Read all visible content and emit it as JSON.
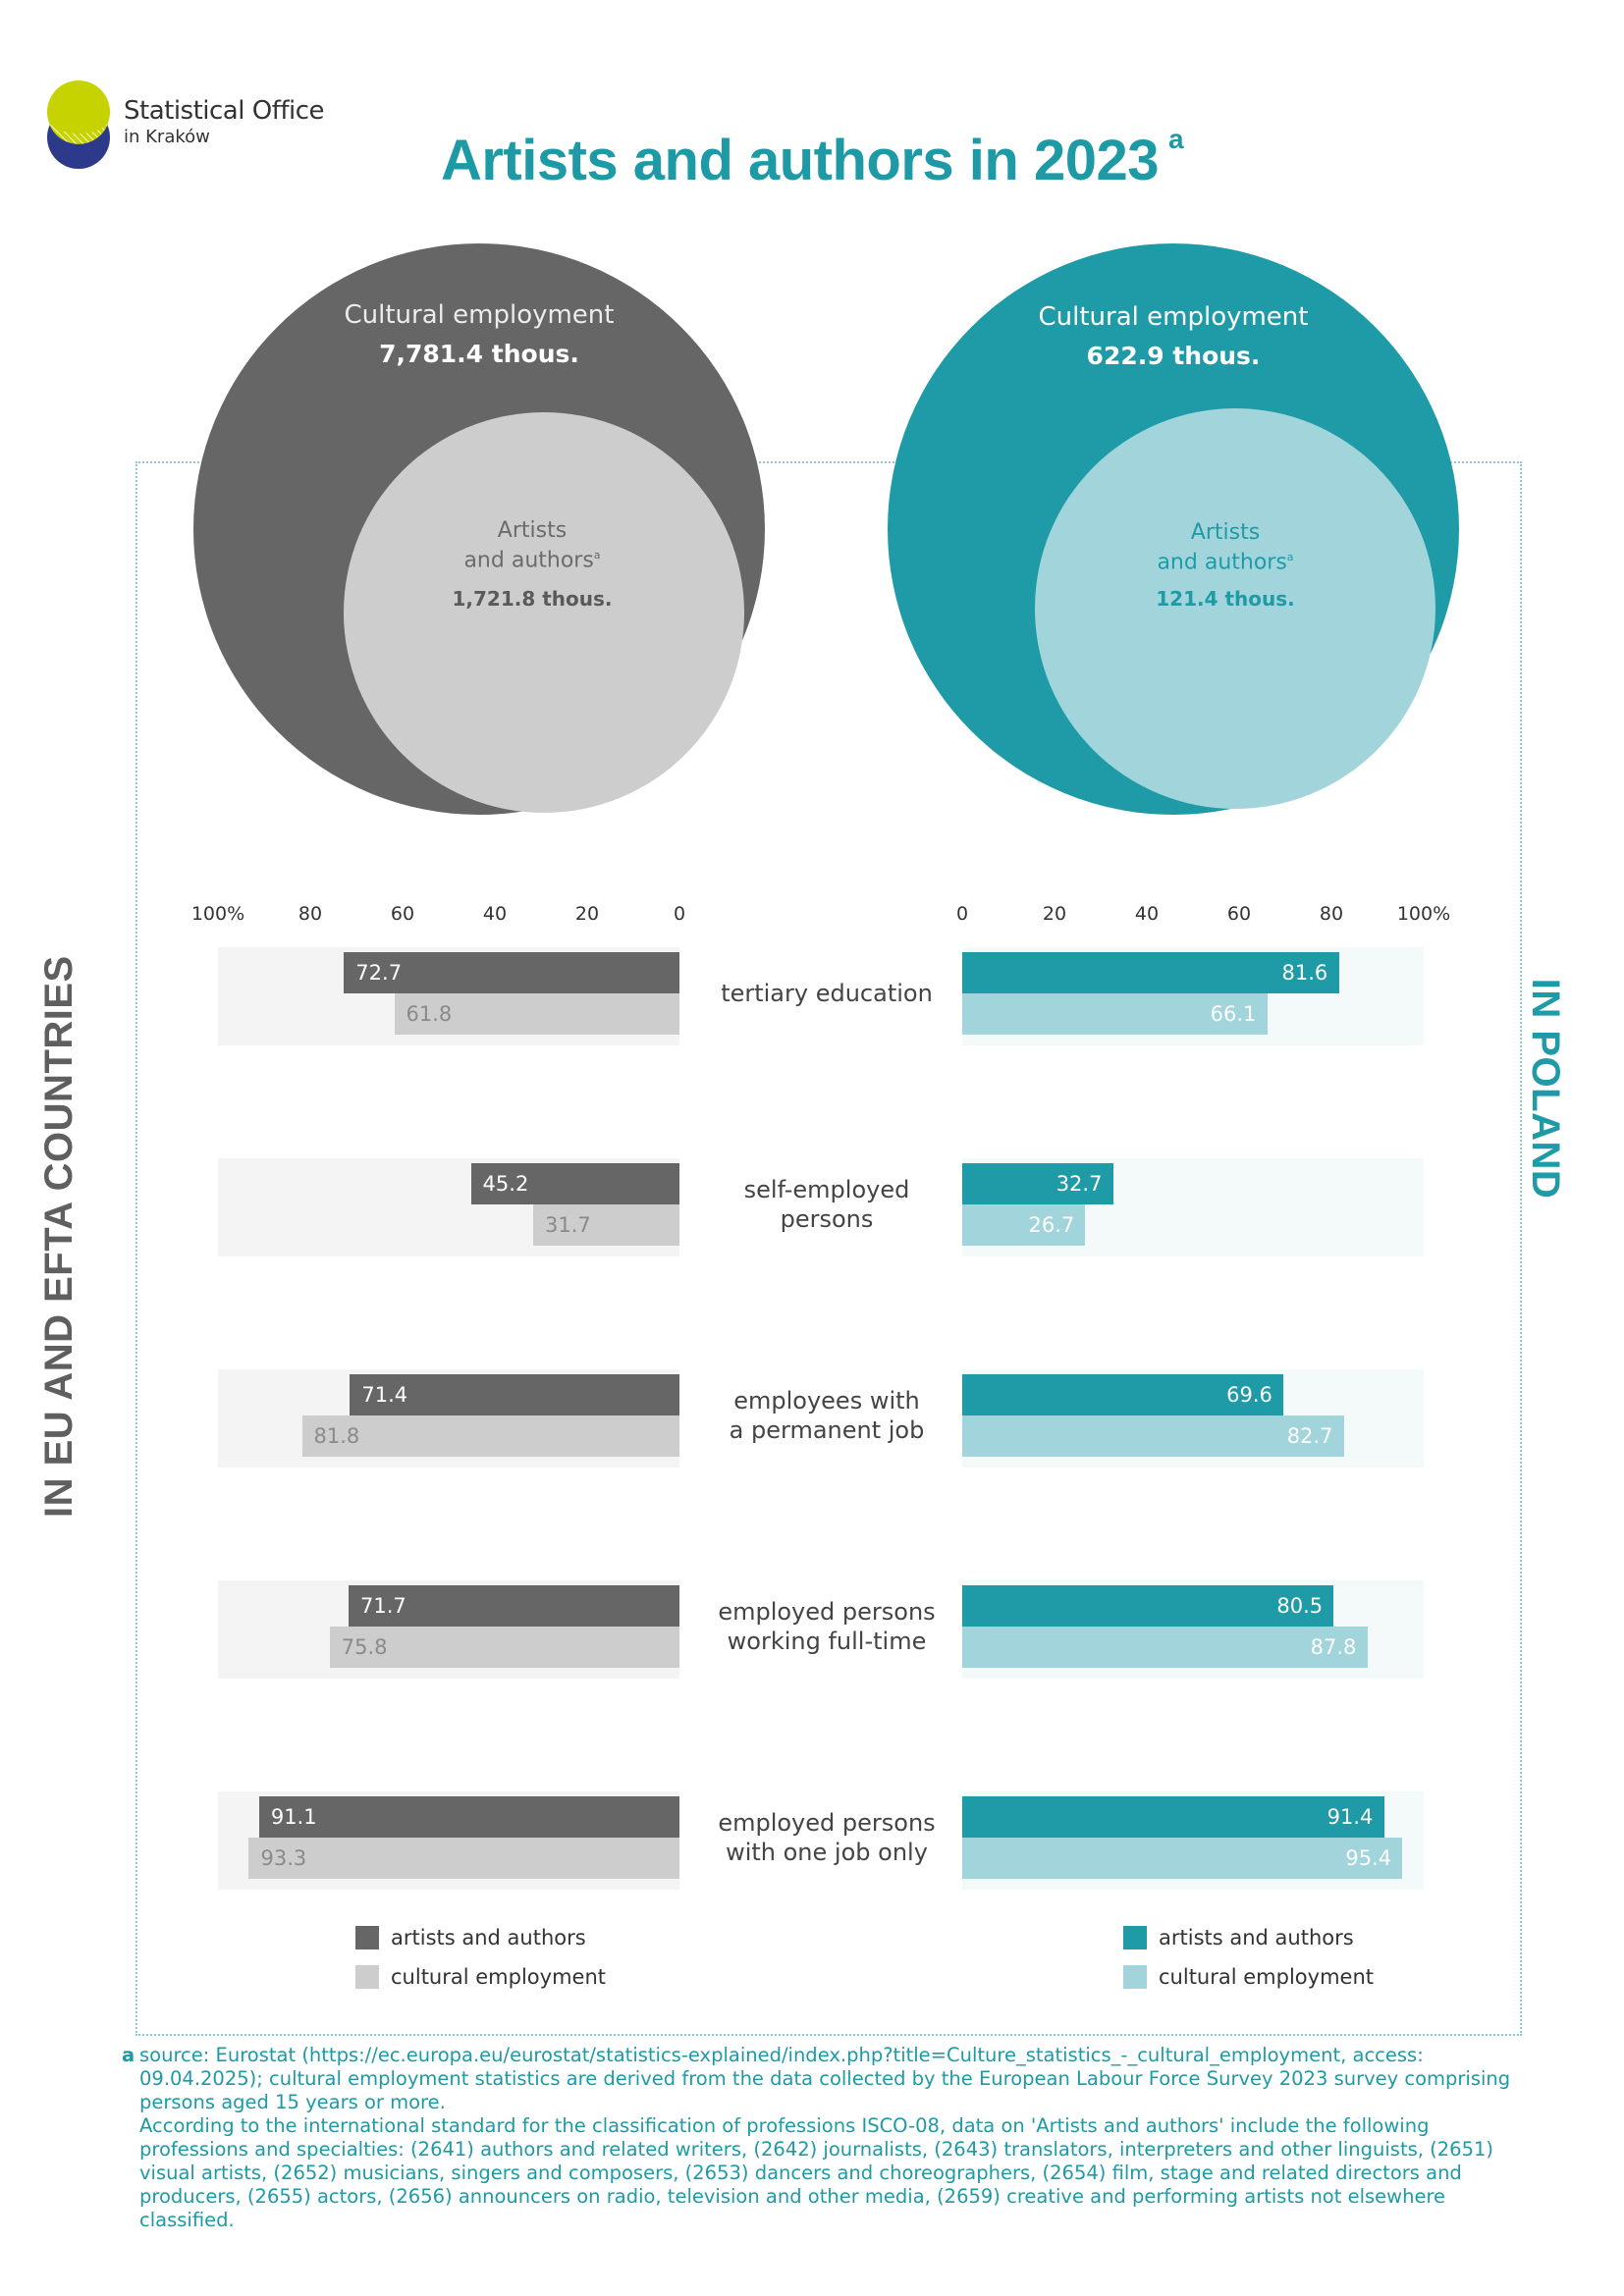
{
  "logo": {
    "line1": "Statistical Office",
    "line2": "in Kraków",
    "colors": {
      "top": "#c7d300",
      "bottom": "#2d3a8c"
    }
  },
  "title": {
    "text": "Artists and authors in 2023",
    "footnote_mark": "a"
  },
  "circles": {
    "eu": {
      "outer_label": "Cultural employment",
      "outer_value": "7,781.4 thous.",
      "inner_label_1": "Artists",
      "inner_label_2": "and authors",
      "inner_mark": "a",
      "inner_value": "1,721.8 thous."
    },
    "pl": {
      "outer_label": "Cultural employment",
      "outer_value": "622.9 thous.",
      "inner_label_1": "Artists",
      "inner_label_2": "and authors",
      "inner_mark": "a",
      "inner_value": "121.4 thous."
    }
  },
  "side_labels": {
    "eu": "IN EU AND EFTA COUNTRIES",
    "pl": "IN POLAND"
  },
  "chart_data": {
    "type": "bar",
    "orientation": "horizontal-butterfly",
    "categories": [
      [
        "tertiary education"
      ],
      [
        "self-employed",
        "persons"
      ],
      [
        "employees with",
        "a permanent job"
      ],
      [
        "employed persons",
        "working full-time"
      ],
      [
        "employed persons",
        "with one job only"
      ]
    ],
    "left_axis": {
      "ticks": [
        "100%",
        "80",
        "60",
        "40",
        "20",
        "0"
      ],
      "range": [
        100,
        0
      ]
    },
    "right_axis": {
      "ticks": [
        "0",
        "20",
        "40",
        "60",
        "80",
        "100%"
      ],
      "range": [
        0,
        100
      ]
    },
    "eu": {
      "artists_and_authors": [
        72.7,
        45.2,
        71.4,
        71.7,
        91.1
      ],
      "cultural_employment": [
        61.8,
        31.7,
        81.8,
        75.8,
        93.3
      ]
    },
    "pl": {
      "artists_and_authors": [
        81.6,
        32.7,
        69.6,
        80.5,
        91.4
      ],
      "cultural_employment": [
        66.1,
        26.7,
        82.7,
        87.8,
        95.4
      ]
    },
    "colors": {
      "eu_artists": "#666666",
      "eu_cultural": "#cdcdcd",
      "pl_artists": "#1e9ba6",
      "pl_cultural": "#a2d5db"
    }
  },
  "legend": {
    "eu": {
      "artists": "artists and authors",
      "cultural": "cultural employment"
    },
    "pl": {
      "artists": "artists and authors",
      "cultural": "cultural employment"
    }
  },
  "footnote": {
    "mark": "a",
    "p1": "source: Eurostat (https://ec.europa.eu/eurostat/statistics-explained/index.php?title=Culture_statistics_-_cultural_employment, access: 09.04.2025); cultural employment statistics are derived from the data collected by the European Labour Force Survey 2023 survey comprising persons aged 15 years or more.",
    "p2": "According to the international standard for the classification of professions ISCO-08, data on 'Artists and authors' include the following professions and specialties: (2641) authors and related writers, (2642) journalists, (2643) translators, interpreters and other linguists, (2651) visual artists, (2652) musicians, singers and composers, (2653) dancers and choreographers, (2654) film, stage and related directors and producers, (2655) actors, (2656) announcers on radio, television and other media, (2659) creative and performing artists not elsewhere classified."
  }
}
